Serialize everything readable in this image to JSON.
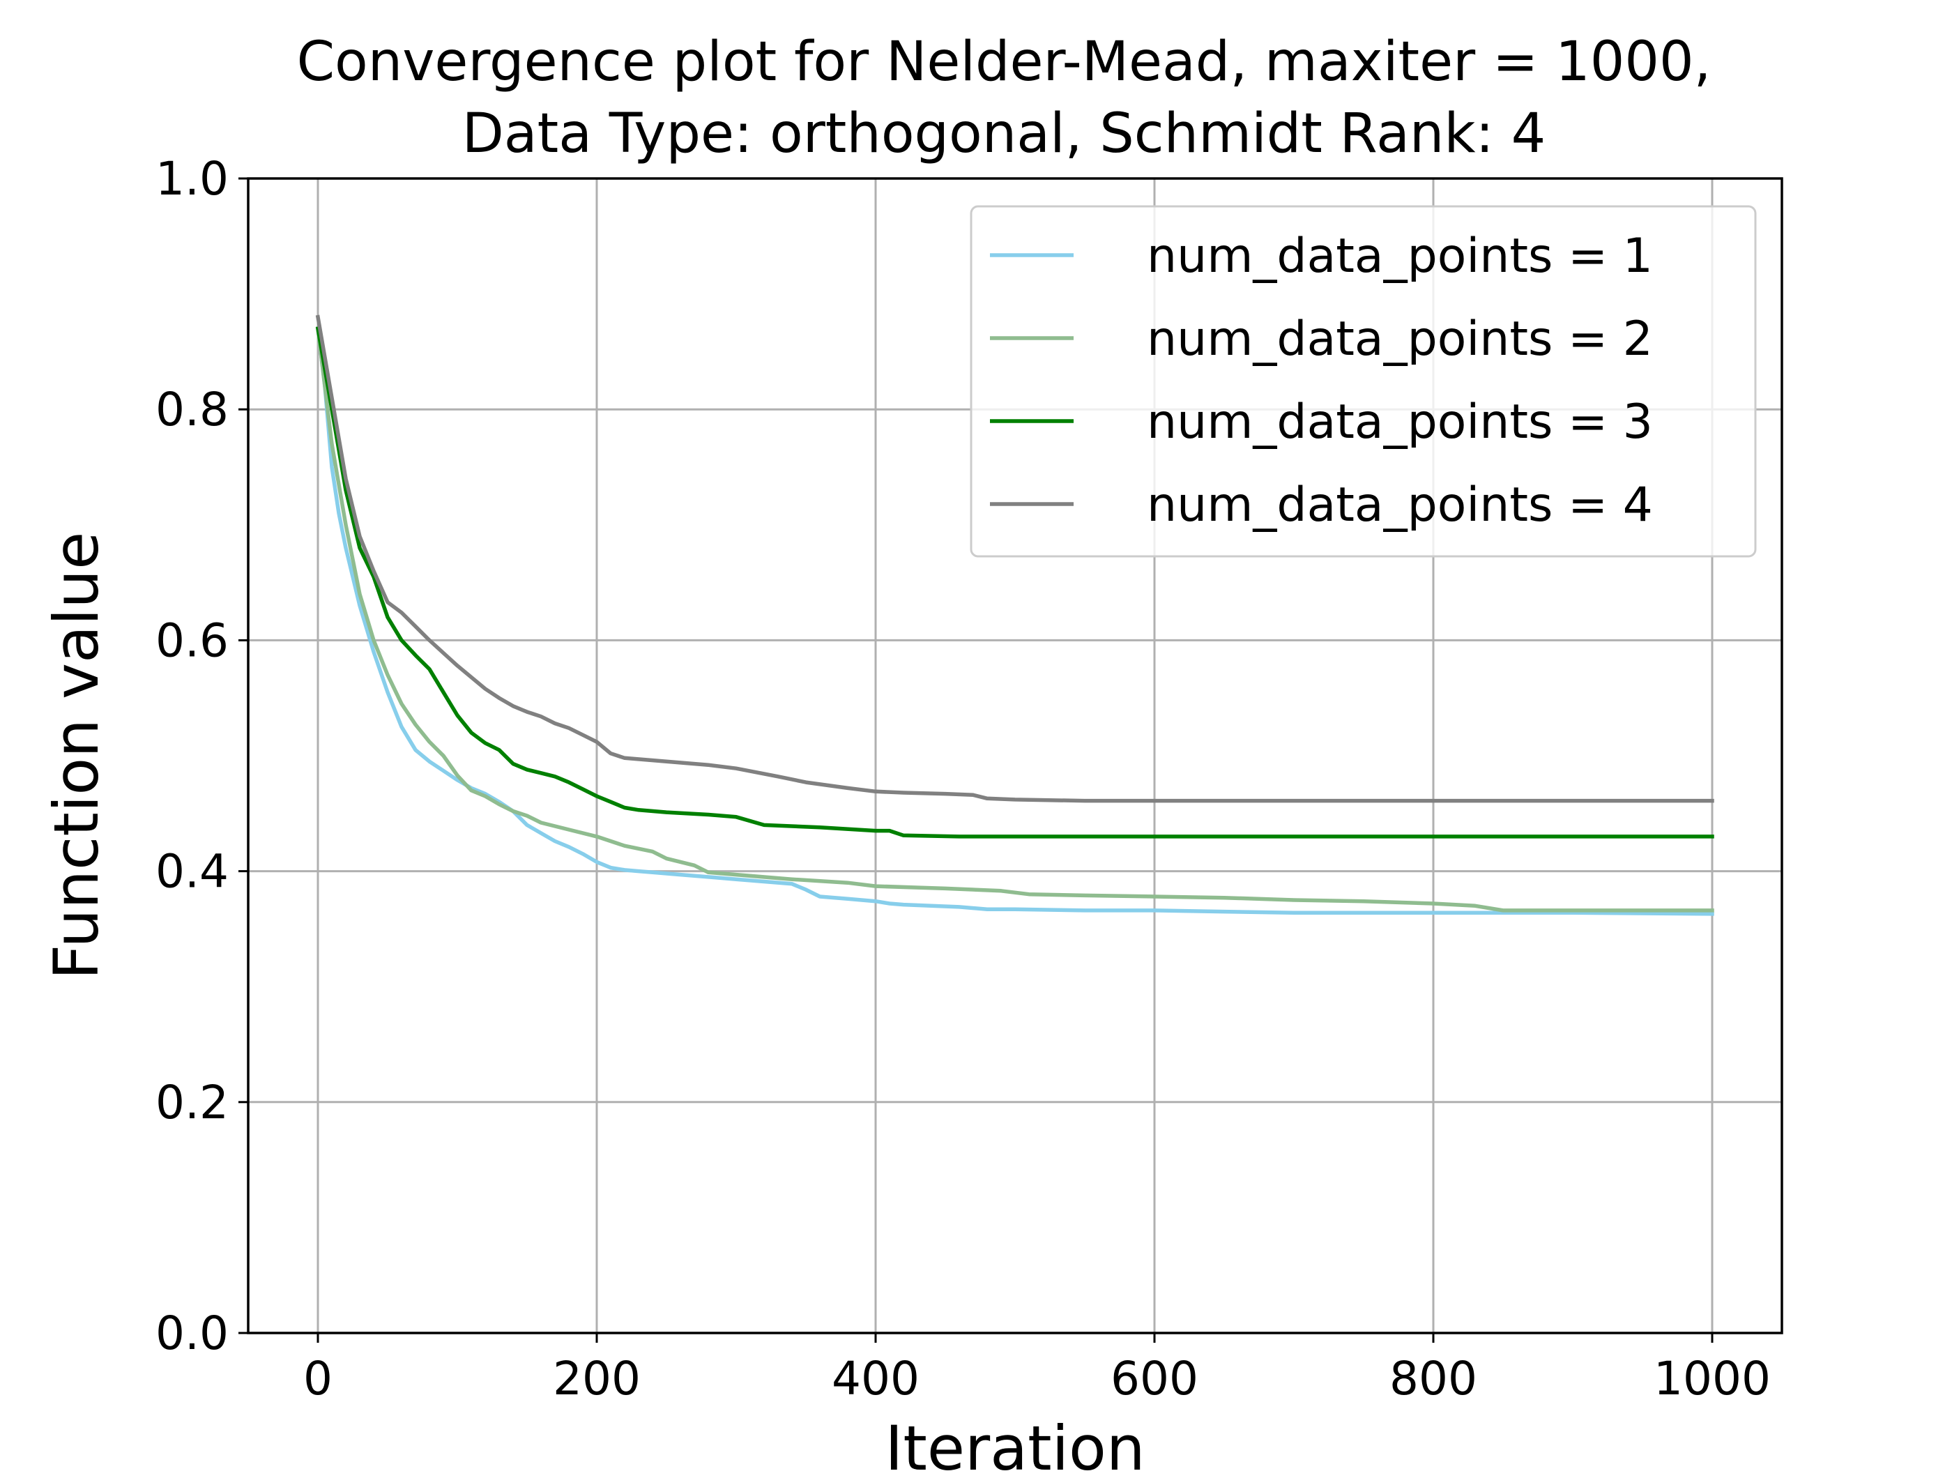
{
  "chart_data": {
    "type": "line",
    "title": "Convergence plot for Nelder-Mead, maxiter = 1000,",
    "subtitle": "Data Type: orthogonal, Schmidt Rank: 4",
    "xlabel": "Iteration",
    "ylabel": "Function value",
    "xlim": [
      -50,
      1050
    ],
    "ylim": [
      0.0,
      1.0
    ],
    "xticks": [
      0,
      200,
      400,
      600,
      800,
      1000
    ],
    "yticks": [
      0.0,
      0.2,
      0.4,
      0.6,
      0.8,
      1.0
    ],
    "xtick_labels": [
      "0",
      "200",
      "400",
      "600",
      "800",
      "1000"
    ],
    "ytick_labels": [
      "0.0",
      "0.2",
      "0.4",
      "0.6",
      "0.8",
      "1.0"
    ],
    "grid": true,
    "legend_position": "top-right",
    "series": [
      {
        "name": "num_data_points = 1",
        "color": "#87ceeb",
        "x": [
          0,
          5,
          10,
          15,
          20,
          30,
          40,
          50,
          60,
          70,
          80,
          90,
          100,
          110,
          120,
          130,
          140,
          150,
          160,
          170,
          180,
          190,
          200,
          210,
          220,
          230,
          240,
          260,
          280,
          300,
          320,
          340,
          350,
          360,
          380,
          400,
          410,
          420,
          440,
          460,
          480,
          500,
          550,
          600,
          650,
          700,
          800,
          850,
          900,
          1000
        ],
        "y": [
          0.87,
          0.82,
          0.75,
          0.71,
          0.68,
          0.63,
          0.59,
          0.555,
          0.525,
          0.505,
          0.495,
          0.487,
          0.479,
          0.472,
          0.467,
          0.46,
          0.452,
          0.44,
          0.433,
          0.426,
          0.421,
          0.415,
          0.408,
          0.403,
          0.401,
          0.4,
          0.399,
          0.397,
          0.395,
          0.393,
          0.391,
          0.389,
          0.384,
          0.378,
          0.376,
          0.374,
          0.372,
          0.371,
          0.37,
          0.369,
          0.367,
          0.367,
          0.366,
          0.366,
          0.365,
          0.364,
          0.364,
          0.364,
          0.364,
          0.363
        ]
      },
      {
        "name": "num_data_points = 2",
        "color": "#8fbc8f",
        "x": [
          0,
          10,
          20,
          30,
          40,
          50,
          60,
          70,
          80,
          90,
          100,
          110,
          120,
          130,
          140,
          150,
          160,
          180,
          200,
          220,
          240,
          250,
          270,
          280,
          300,
          340,
          380,
          400,
          450,
          490,
          510,
          550,
          600,
          650,
          700,
          750,
          800,
          830,
          850,
          900,
          1000
        ],
        "y": [
          0.87,
          0.77,
          0.7,
          0.64,
          0.6,
          0.57,
          0.545,
          0.527,
          0.512,
          0.5,
          0.483,
          0.47,
          0.465,
          0.458,
          0.452,
          0.448,
          0.442,
          0.436,
          0.43,
          0.422,
          0.417,
          0.411,
          0.405,
          0.399,
          0.397,
          0.393,
          0.39,
          0.387,
          0.385,
          0.383,
          0.38,
          0.379,
          0.378,
          0.377,
          0.375,
          0.374,
          0.372,
          0.37,
          0.366,
          0.366,
          0.366
        ]
      },
      {
        "name": "num_data_points = 3",
        "color": "#008000",
        "x": [
          0,
          10,
          20,
          30,
          40,
          50,
          60,
          70,
          80,
          90,
          100,
          110,
          120,
          130,
          140,
          150,
          160,
          170,
          180,
          190,
          200,
          210,
          220,
          230,
          250,
          280,
          300,
          320,
          360,
          400,
          410,
          420,
          460,
          500,
          600,
          800,
          1000
        ],
        "y": [
          0.87,
          0.8,
          0.73,
          0.68,
          0.655,
          0.62,
          0.6,
          0.587,
          0.575,
          0.555,
          0.535,
          0.52,
          0.511,
          0.505,
          0.493,
          0.488,
          0.485,
          0.482,
          0.477,
          0.471,
          0.465,
          0.46,
          0.455,
          0.453,
          0.451,
          0.449,
          0.447,
          0.44,
          0.438,
          0.435,
          0.435,
          0.431,
          0.43,
          0.43,
          0.43,
          0.43,
          0.43
        ]
      },
      {
        "name": "num_data_points = 4",
        "color": "#808080",
        "x": [
          0,
          10,
          20,
          30,
          40,
          50,
          60,
          70,
          80,
          90,
          100,
          110,
          120,
          130,
          140,
          150,
          160,
          170,
          180,
          190,
          200,
          210,
          220,
          250,
          280,
          300,
          330,
          350,
          380,
          400,
          420,
          450,
          470,
          480,
          500,
          550,
          600,
          800,
          1000
        ],
        "y": [
          0.88,
          0.81,
          0.74,
          0.69,
          0.66,
          0.633,
          0.624,
          0.612,
          0.6,
          0.589,
          0.578,
          0.568,
          0.558,
          0.55,
          0.543,
          0.538,
          0.534,
          0.528,
          0.524,
          0.518,
          0.512,
          0.502,
          0.498,
          0.495,
          0.492,
          0.489,
          0.482,
          0.477,
          0.472,
          0.469,
          0.468,
          0.467,
          0.466,
          0.463,
          0.462,
          0.461,
          0.461,
          0.461,
          0.461
        ]
      }
    ]
  }
}
